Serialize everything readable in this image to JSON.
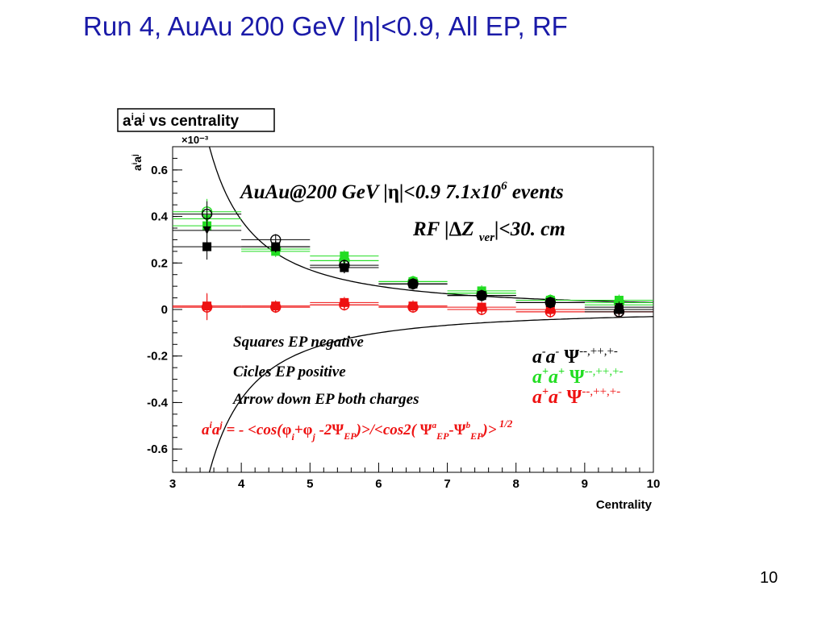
{
  "slide": {
    "title": "Run 4, AuAu 200 GeV |η|<0.9,  All EP, RF",
    "page_number": "10"
  },
  "chart_data": {
    "type": "scatter",
    "title": "aⁱaʲ vs centrality",
    "xlabel": "Centrality",
    "ylabel": "aⁱaʲ",
    "y_exponent": "×10⁻³",
    "xlim": [
      3,
      10
    ],
    "ylim": [
      -0.7,
      0.7
    ],
    "x_ticks": [
      3,
      4,
      5,
      6,
      7,
      8,
      9,
      10
    ],
    "y_ticks": [
      -0.6,
      -0.4,
      -0.2,
      0,
      0.2,
      0.4,
      0.6
    ],
    "y_tick_labels": [
      "-0.6",
      "-0.4",
      "-0.2",
      "0",
      "0.2",
      "0.4",
      "0.6"
    ],
    "grid": false,
    "x": [
      3.5,
      4.5,
      5.5,
      6.5,
      7.5,
      8.5,
      9.5
    ],
    "groups": [
      {
        "charge": "a⁻a⁻",
        "color": "#000000",
        "ep_negative_squares": [
          0.27,
          0.27,
          0.18,
          0.11,
          0.06,
          0.03,
          0.0
        ],
        "ep_positive_circles": [
          0.41,
          0.3,
          0.19,
          0.11,
          0.06,
          0.03,
          -0.01
        ],
        "ep_both_arrows_down": [
          0.34,
          0.27,
          0.18,
          0.11,
          0.06,
          0.03,
          0.01
        ]
      },
      {
        "charge": "a⁺a⁺",
        "color": "#22dd22",
        "ep_negative_squares": [
          0.36,
          0.25,
          0.23,
          0.12,
          0.08,
          0.04,
          0.04
        ],
        "ep_positive_circles": [
          0.42,
          0.26,
          0.21,
          0.12,
          0.07,
          0.04,
          0.03
        ],
        "ep_both_arrows_down": [
          0.39,
          0.26,
          0.21,
          0.12,
          0.07,
          0.04,
          0.02
        ]
      },
      {
        "charge": "a⁺a⁻",
        "color": "#ee1111",
        "ep_negative_squares": [
          0.015,
          0.015,
          0.03,
          0.015,
          0.01,
          0.0,
          0.0
        ],
        "ep_positive_circles": [
          0.01,
          0.01,
          0.02,
          0.01,
          0.0,
          -0.01,
          -0.01
        ],
        "ep_both_arrows_down": [
          0.01,
          0.01,
          0.02,
          0.01,
          0.0,
          -0.01,
          -0.01
        ]
      }
    ],
    "annotations": {
      "header_line1": "AuAu@200 GeV |η|<0.9 7.1x10⁶  events",
      "header_line2": "RF |ΔZ ver|<30. cm",
      "marker_squares": "Squares EP negative",
      "marker_circles": "Cicles EP positive",
      "marker_arrows": "Arrow down EP both charges",
      "legend_minus_minus": "a⁻a⁻  Ψ⁻⁻,⁺⁺,⁺⁻",
      "legend_plus_plus": "a⁺a⁺  Ψ⁻⁻,⁺⁺,⁺⁻",
      "legend_plus_minus": "a⁺a⁻  Ψ⁻⁻,⁺⁺,⁺⁻",
      "formula": "aⁱaʲ = - <cos(φᵢ+φⱼ -2ΨEP)>/<cos2( ΨᵃEP-ΨᵇEP)>¹ᐟ²"
    }
  }
}
